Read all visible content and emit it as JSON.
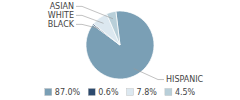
{
  "chart_data": {
    "type": "pie",
    "categories": [
      "HISPANIC",
      "BLACK",
      "WHITE",
      "ASIAN"
    ],
    "values": [
      87.0,
      0.6,
      7.8,
      4.5
    ],
    "value_labels": [
      "87.0%",
      "0.6%",
      "7.8%",
      "4.5%"
    ],
    "colors": [
      "#7a9fb5",
      "#2c4a6e",
      "#dce8f0",
      "#b8cfd9"
    ],
    "legend": "bottom"
  }
}
